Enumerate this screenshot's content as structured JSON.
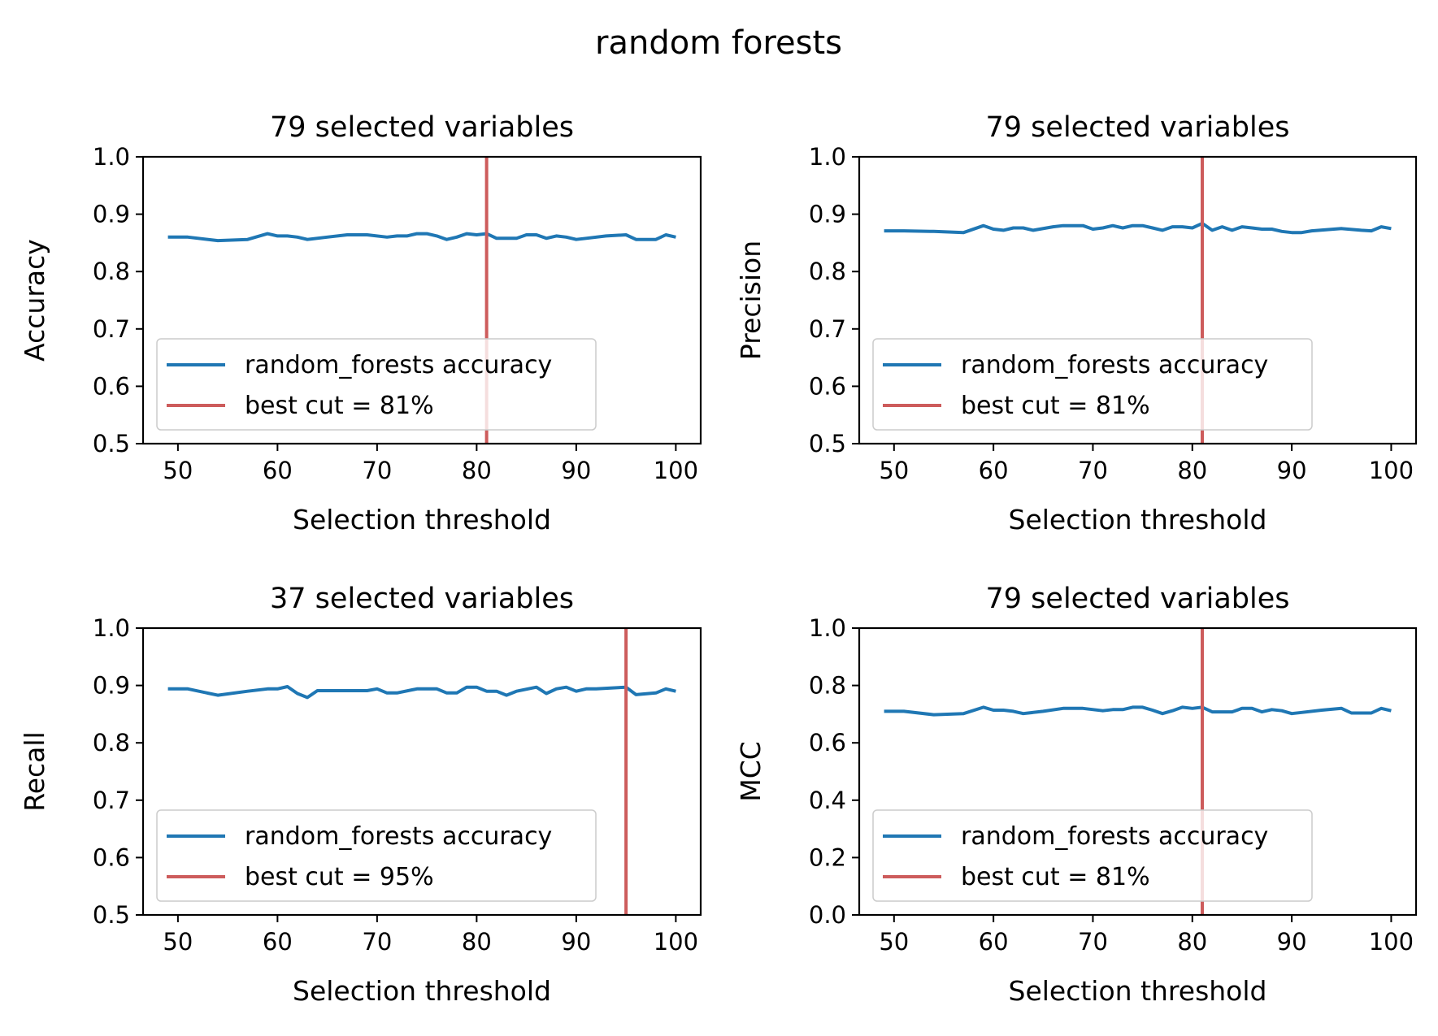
{
  "figure_title": "random forests",
  "colors": {
    "series": "#1f77b4",
    "cut": "#cd5c5c",
    "axes": "#000000",
    "legend_edge": "#cccccc"
  },
  "chart_data": [
    {
      "type": "line",
      "title": "79 selected variables",
      "xlabel": "Selection threshold",
      "ylabel": "Accuracy",
      "xlim": [
        46.5,
        102.5
      ],
      "ylim": [
        0.5,
        1.0
      ],
      "xticks": [
        "50",
        "60",
        "70",
        "80",
        "90",
        "100"
      ],
      "yticks": [
        "0.5",
        "0.6",
        "0.7",
        "0.8",
        "0.9",
        "1.0"
      ],
      "grid": false,
      "legend_position": "lower-left",
      "series": [
        {
          "name": "random_forests accuracy",
          "x": [
            49,
            51,
            54,
            57,
            59,
            60,
            61,
            62,
            63,
            65,
            67,
            69,
            71,
            72,
            73,
            74,
            75,
            76,
            77,
            78,
            79,
            80,
            81,
            82,
            83,
            84,
            85,
            86,
            87,
            88,
            89,
            90,
            91,
            93,
            95,
            96,
            97,
            98,
            99,
            100
          ],
          "y": [
            0.86,
            0.86,
            0.854,
            0.856,
            0.866,
            0.862,
            0.862,
            0.86,
            0.856,
            0.86,
            0.864,
            0.864,
            0.86,
            0.862,
            0.862,
            0.866,
            0.866,
            0.862,
            0.856,
            0.86,
            0.866,
            0.864,
            0.866,
            0.858,
            0.858,
            0.858,
            0.864,
            0.864,
            0.858,
            0.862,
            0.86,
            0.856,
            0.858,
            0.862,
            0.864,
            0.856,
            0.856,
            0.856,
            0.864,
            0.86
          ]
        }
      ],
      "best_cut": {
        "x": 81,
        "label": "best cut = 81%"
      }
    },
    {
      "type": "line",
      "title": "79 selected variables",
      "xlabel": "Selection threshold",
      "ylabel": "Precision",
      "xlim": [
        46.5,
        102.5
      ],
      "ylim": [
        0.5,
        1.0
      ],
      "xticks": [
        "50",
        "60",
        "70",
        "80",
        "90",
        "100"
      ],
      "yticks": [
        "0.5",
        "0.6",
        "0.7",
        "0.8",
        "0.9",
        "1.0"
      ],
      "grid": false,
      "legend_position": "lower-left",
      "series": [
        {
          "name": "random_forests accuracy",
          "x": [
            49,
            51,
            54,
            57,
            59,
            60,
            61,
            62,
            63,
            64,
            66,
            67,
            68,
            69,
            70,
            71,
            72,
            73,
            74,
            75,
            76,
            77,
            78,
            79,
            80,
            81,
            82,
            83,
            84,
            85,
            86,
            87,
            88,
            89,
            90,
            91,
            92,
            95,
            97,
            98,
            99,
            100
          ],
          "y": [
            0.871,
            0.871,
            0.87,
            0.868,
            0.88,
            0.874,
            0.872,
            0.876,
            0.876,
            0.872,
            0.878,
            0.88,
            0.88,
            0.88,
            0.874,
            0.876,
            0.88,
            0.876,
            0.88,
            0.88,
            0.876,
            0.872,
            0.878,
            0.878,
            0.876,
            0.884,
            0.872,
            0.878,
            0.872,
            0.878,
            0.876,
            0.874,
            0.874,
            0.87,
            0.868,
            0.868,
            0.871,
            0.875,
            0.872,
            0.871,
            0.878,
            0.875
          ]
        }
      ],
      "best_cut": {
        "x": 81,
        "label": "best cut = 81%"
      }
    },
    {
      "type": "line",
      "title": "37 selected variables",
      "xlabel": "Selection threshold",
      "ylabel": "Recall",
      "xlim": [
        46.5,
        102.5
      ],
      "ylim": [
        0.5,
        1.0
      ],
      "xticks": [
        "50",
        "60",
        "70",
        "80",
        "90",
        "100"
      ],
      "yticks": [
        "0.5",
        "0.6",
        "0.7",
        "0.8",
        "0.9",
        "1.0"
      ],
      "grid": false,
      "legend_position": "lower-left",
      "series": [
        {
          "name": "random_forests accuracy",
          "x": [
            49,
            51,
            54,
            57,
            59,
            60,
            61,
            62,
            63,
            64,
            65,
            67,
            69,
            70,
            71,
            72,
            74,
            76,
            77,
            78,
            79,
            80,
            81,
            82,
            83,
            84,
            86,
            87,
            88,
            89,
            90,
            91,
            92,
            95,
            96,
            98,
            99,
            100
          ],
          "y": [
            0.894,
            0.894,
            0.883,
            0.89,
            0.894,
            0.894,
            0.898,
            0.886,
            0.879,
            0.891,
            0.891,
            0.891,
            0.891,
            0.894,
            0.887,
            0.887,
            0.894,
            0.894,
            0.887,
            0.887,
            0.897,
            0.897,
            0.89,
            0.89,
            0.883,
            0.89,
            0.897,
            0.886,
            0.894,
            0.897,
            0.89,
            0.894,
            0.894,
            0.897,
            0.884,
            0.887,
            0.894,
            0.89
          ]
        }
      ],
      "best_cut": {
        "x": 95,
        "label": "best cut = 95%"
      }
    },
    {
      "type": "line",
      "title": "79 selected variables",
      "xlabel": "Selection threshold",
      "ylabel": "MCC",
      "xlim": [
        46.5,
        102.5
      ],
      "ylim": [
        0.0,
        1.0
      ],
      "xticks": [
        "50",
        "60",
        "70",
        "80",
        "90",
        "100"
      ],
      "yticks": [
        "0.0",
        "0.2",
        "0.4",
        "0.6",
        "0.8",
        "1.0"
      ],
      "grid": false,
      "legend_position": "lower-left",
      "series": [
        {
          "name": "random_forests accuracy",
          "x": [
            49,
            51,
            54,
            57,
            59,
            60,
            61,
            62,
            63,
            65,
            67,
            69,
            71,
            72,
            73,
            74,
            75,
            76,
            77,
            78,
            79,
            80,
            81,
            82,
            83,
            84,
            85,
            86,
            87,
            88,
            89,
            90,
            91,
            93,
            95,
            96,
            97,
            98,
            99,
            100
          ],
          "y": [
            0.71,
            0.71,
            0.698,
            0.702,
            0.724,
            0.714,
            0.714,
            0.71,
            0.702,
            0.71,
            0.72,
            0.72,
            0.712,
            0.716,
            0.716,
            0.724,
            0.724,
            0.714,
            0.702,
            0.712,
            0.724,
            0.72,
            0.724,
            0.708,
            0.708,
            0.708,
            0.72,
            0.72,
            0.708,
            0.716,
            0.712,
            0.702,
            0.706,
            0.714,
            0.72,
            0.704,
            0.704,
            0.704,
            0.72,
            0.712
          ]
        }
      ],
      "best_cut": {
        "x": 81,
        "label": "best cut = 81%"
      }
    }
  ]
}
